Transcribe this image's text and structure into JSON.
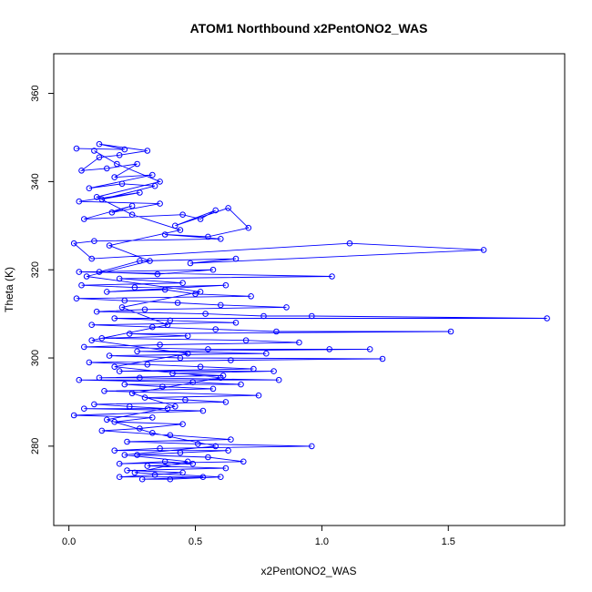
{
  "chart_data": {
    "type": "line",
    "title": "ATOM1 Northbound x2PentONO2_WAS",
    "xlabel": "x2PentONO2_WAS",
    "ylabel": "Theta (K)",
    "xlim": [
      -0.06,
      1.96
    ],
    "ylim": [
      262,
      369
    ],
    "x_ticks": [
      0.0,
      0.5,
      1.0,
      1.5
    ],
    "x_tick_labels": [
      "0.0",
      "0.5",
      "1.0",
      "1.5"
    ],
    "y_ticks": [
      280,
      300,
      320,
      340,
      360
    ],
    "y_tick_labels": [
      "280",
      "300",
      "320",
      "340",
      "360"
    ],
    "grid": false,
    "colors": {
      "series": "#0000ff",
      "axes": "#000000",
      "background": "#ffffff"
    },
    "series": [
      {
        "marker": "open-circle",
        "points": [
          [
            0.03,
            347.5
          ],
          [
            0.22,
            347.3
          ],
          [
            0.12,
            348.5
          ],
          [
            0.31,
            347.0
          ],
          [
            0.2,
            346.0
          ],
          [
            0.12,
            345.5
          ],
          [
            0.05,
            342.5
          ],
          [
            0.15,
            343.0
          ],
          [
            0.27,
            344.0
          ],
          [
            0.18,
            341.0
          ],
          [
            0.33,
            341.5
          ],
          [
            0.08,
            338.5
          ],
          [
            0.21,
            339.5
          ],
          [
            0.34,
            339.0
          ],
          [
            0.13,
            336.0
          ],
          [
            0.28,
            337.5
          ],
          [
            0.04,
            335.5
          ],
          [
            0.36,
            335.0
          ],
          [
            0.17,
            333.0
          ],
          [
            0.25,
            334.5
          ],
          [
            0.06,
            331.5
          ],
          [
            0.45,
            332.5
          ],
          [
            0.52,
            331.5
          ],
          [
            0.58,
            333.5
          ],
          [
            0.42,
            330.0
          ],
          [
            0.63,
            334.0
          ],
          [
            0.71,
            329.5
          ],
          [
            0.55,
            327.5
          ],
          [
            0.38,
            328.0
          ],
          [
            0.6,
            327.0
          ],
          [
            0.1,
            326.5
          ],
          [
            0.02,
            326.0
          ],
          [
            0.09,
            322.5
          ],
          [
            1.11,
            326.0
          ],
          [
            1.64,
            324.5
          ],
          [
            0.48,
            321.5
          ],
          [
            0.66,
            322.5
          ],
          [
            0.28,
            322.0
          ],
          [
            0.12,
            319.5
          ],
          [
            0.35,
            319.0
          ],
          [
            0.57,
            320.0
          ],
          [
            0.04,
            319.5
          ],
          [
            1.04,
            318.5
          ],
          [
            0.2,
            318.0
          ],
          [
            0.45,
            317.0
          ],
          [
            0.05,
            316.5
          ],
          [
            0.26,
            316.0
          ],
          [
            0.62,
            316.5
          ],
          [
            0.15,
            315.0
          ],
          [
            0.38,
            315.5
          ],
          [
            0.5,
            314.5
          ],
          [
            0.72,
            314.0
          ],
          [
            0.03,
            313.5
          ],
          [
            0.22,
            313.0
          ],
          [
            0.43,
            312.5
          ],
          [
            0.6,
            312.0
          ],
          [
            0.86,
            311.5
          ],
          [
            0.3,
            311.0
          ],
          [
            0.11,
            310.5
          ],
          [
            0.54,
            310.0
          ],
          [
            0.77,
            309.5
          ],
          [
            0.96,
            309.5
          ],
          [
            1.89,
            309.0
          ],
          [
            0.18,
            309.0
          ],
          [
            0.4,
            308.5
          ],
          [
            0.66,
            308.0
          ],
          [
            0.09,
            307.5
          ],
          [
            0.33,
            307.0
          ],
          [
            0.58,
            306.5
          ],
          [
            0.82,
            306.0
          ],
          [
            1.51,
            306.0
          ],
          [
            0.24,
            305.5
          ],
          [
            0.47,
            305.0
          ],
          [
            0.13,
            304.5
          ],
          [
            0.7,
            304.0
          ],
          [
            0.91,
            303.5
          ],
          [
            0.36,
            303.0
          ],
          [
            0.06,
            302.5
          ],
          [
            0.55,
            302.0
          ],
          [
            1.03,
            302.0
          ],
          [
            1.19,
            302.0
          ],
          [
            0.27,
            301.5
          ],
          [
            0.78,
            301.0
          ],
          [
            0.16,
            300.5
          ],
          [
            0.44,
            300.0
          ],
          [
            1.24,
            299.8
          ],
          [
            0.64,
            299.5
          ],
          [
            0.08,
            299.0
          ],
          [
            0.31,
            298.5
          ],
          [
            0.52,
            298.0
          ],
          [
            0.73,
            297.5
          ],
          [
            0.2,
            297.0
          ],
          [
            0.81,
            297.0
          ],
          [
            0.41,
            296.5
          ],
          [
            0.61,
            296.0
          ],
          [
            0.12,
            295.5
          ],
          [
            0.28,
            295.5
          ],
          [
            0.83,
            295.0
          ],
          [
            0.04,
            295.0
          ],
          [
            0.49,
            294.5
          ],
          [
            0.68,
            294.0
          ],
          [
            0.22,
            294.0
          ],
          [
            0.37,
            293.5
          ],
          [
            0.57,
            293.0
          ],
          [
            0.14,
            292.5
          ],
          [
            0.75,
            291.5
          ],
          [
            0.3,
            291.0
          ],
          [
            0.46,
            290.5
          ],
          [
            0.62,
            290.0
          ],
          [
            0.1,
            289.5
          ],
          [
            0.24,
            289.0
          ],
          [
            0.39,
            288.5
          ],
          [
            0.06,
            288.5
          ],
          [
            0.53,
            288.0
          ],
          [
            0.02,
            287.0
          ],
          [
            0.33,
            286.5
          ],
          [
            0.18,
            285.5
          ],
          [
            0.45,
            285.0
          ],
          [
            0.28,
            284.0
          ],
          [
            0.13,
            283.5
          ],
          [
            0.4,
            282.5
          ],
          [
            0.64,
            281.5
          ],
          [
            0.23,
            281.0
          ],
          [
            0.51,
            280.5
          ],
          [
            0.96,
            280.0
          ],
          [
            0.36,
            279.5
          ],
          [
            0.18,
            279.0
          ],
          [
            0.63,
            279.0
          ],
          [
            0.44,
            278.5
          ],
          [
            0.27,
            278.0
          ],
          [
            0.55,
            277.5
          ],
          [
            0.69,
            276.5
          ],
          [
            0.2,
            276.0
          ],
          [
            0.38,
            276.5
          ],
          [
            0.49,
            276.0
          ],
          [
            0.31,
            275.5
          ],
          [
            0.62,
            275.0
          ],
          [
            0.23,
            274.5
          ],
          [
            0.45,
            274.0
          ],
          [
            0.34,
            273.5
          ],
          [
            0.2,
            273.0
          ],
          [
            0.53,
            273.0
          ],
          [
            0.29,
            272.5
          ],
          [
            0.4,
            272.5
          ],
          [
            0.6,
            273.0
          ],
          [
            0.26,
            274.0
          ],
          [
            0.47,
            276.5
          ],
          [
            0.22,
            278.0
          ],
          [
            0.58,
            280.0
          ],
          [
            0.33,
            283.0
          ],
          [
            0.15,
            286.0
          ],
          [
            0.42,
            289.0
          ],
          [
            0.25,
            292.0
          ],
          [
            0.6,
            295.5
          ],
          [
            0.18,
            298.0
          ],
          [
            0.47,
            301.0
          ],
          [
            0.09,
            304.0
          ],
          [
            0.39,
            307.5
          ],
          [
            0.21,
            311.5
          ],
          [
            0.52,
            315.0
          ],
          [
            0.07,
            318.5
          ],
          [
            0.32,
            322.0
          ],
          [
            0.16,
            325.5
          ],
          [
            0.44,
            329.0
          ],
          [
            0.25,
            332.5
          ],
          [
            0.11,
            336.5
          ],
          [
            0.36,
            340.0
          ],
          [
            0.19,
            344.0
          ],
          [
            0.1,
            347.0
          ]
        ]
      }
    ]
  }
}
